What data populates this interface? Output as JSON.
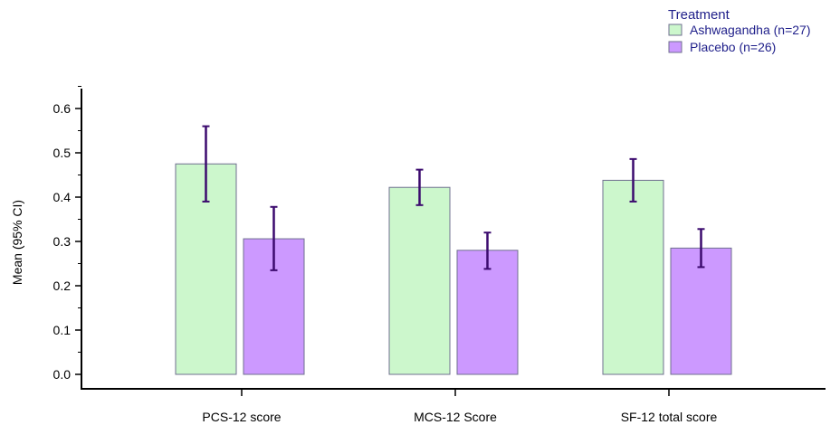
{
  "chart_data": {
    "type": "bar",
    "ylabel": "Mean (95% CI)",
    "ylim": [
      0,
      0.65
    ],
    "yticks": [
      "0.0",
      "0.1",
      "0.2",
      "0.3",
      "0.4",
      "0.5",
      "0.6"
    ],
    "categories": [
      "PCS-12 score",
      "MCS-12 Score",
      "SF-12 total score"
    ],
    "legend": {
      "title": "Treatment",
      "placement": "top-right"
    },
    "series": [
      {
        "name": "Ashwagandha (n=27)",
        "color": "#ccf7cc",
        "values": [
          0.475,
          0.422,
          0.438
        ],
        "ci_low": [
          0.39,
          0.382,
          0.39
        ],
        "ci_high": [
          0.56,
          0.462,
          0.486
        ]
      },
      {
        "name": "Placebo (n=26)",
        "color": "#cc99ff",
        "values": [
          0.306,
          0.28,
          0.285
        ],
        "ci_low": [
          0.235,
          0.238,
          0.242
        ],
        "ci_high": [
          0.378,
          0.32,
          0.328
        ]
      }
    ],
    "error_bar_color": "#3b0a6e",
    "grid": false
  }
}
